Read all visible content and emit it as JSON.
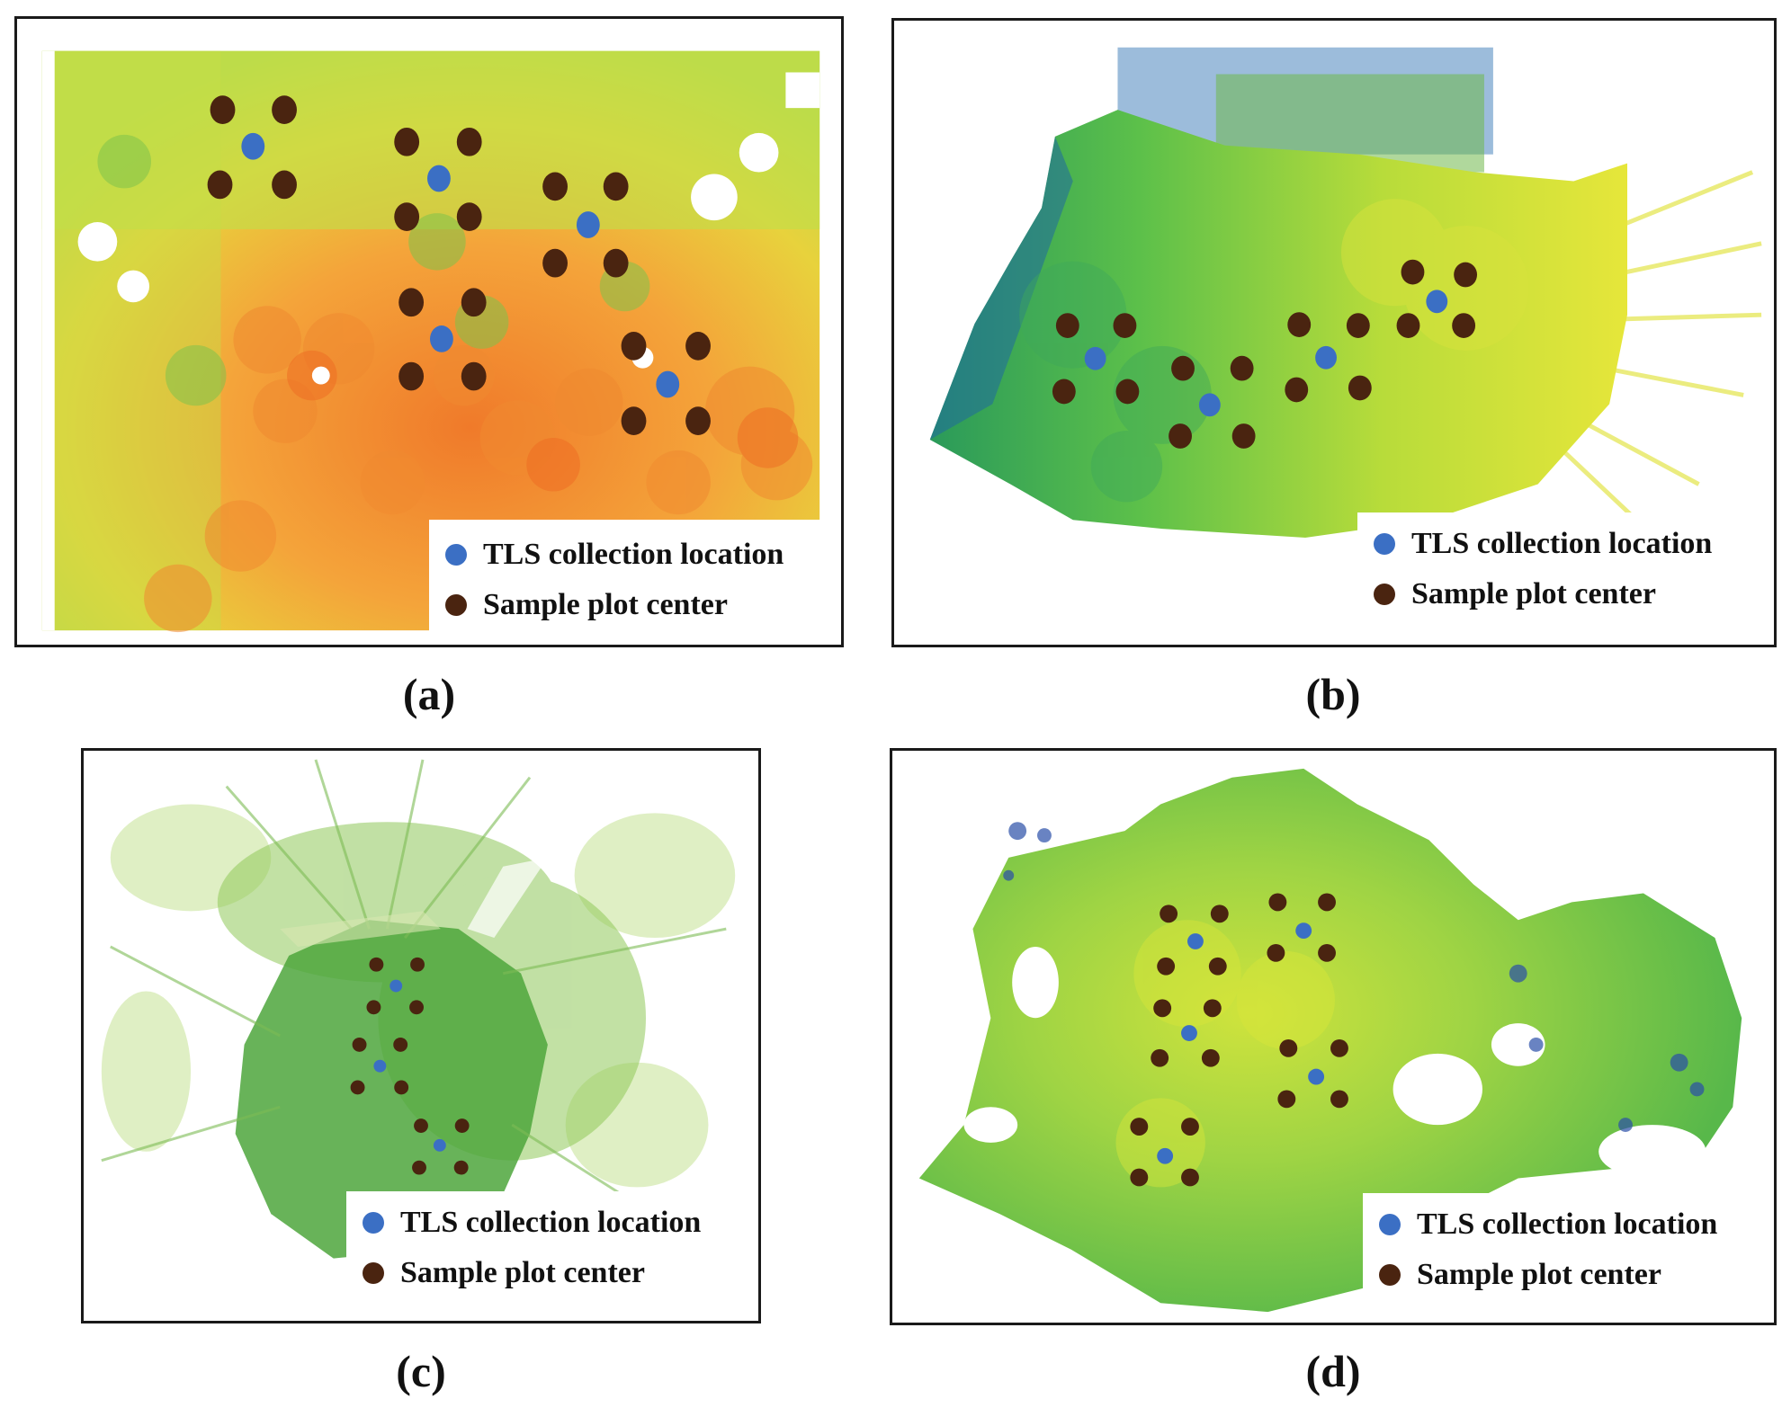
{
  "colors": {
    "tls_marker": "#3b6fc4",
    "plot_marker": "#4a2410",
    "frame": "#1a1a1a"
  },
  "legend": {
    "tls_label": "TLS collection location",
    "plot_label": "Sample plot center"
  },
  "panels": [
    {
      "id": "a",
      "caption": "(a)",
      "palette": "yellow-orange-red height map"
    },
    {
      "id": "b",
      "caption": "(b)",
      "palette": "blue-green-yellow height map"
    },
    {
      "id": "c",
      "caption": "(c)",
      "palette": "sparse green point cloud"
    },
    {
      "id": "d",
      "caption": "(d)",
      "palette": "blue-green-yellow height map"
    }
  ]
}
